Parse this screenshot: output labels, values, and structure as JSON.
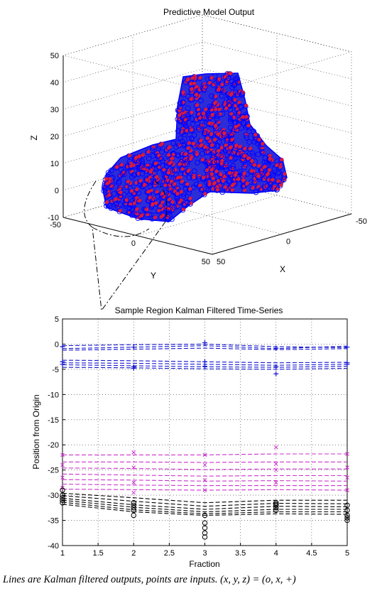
{
  "caption": "Lines are Kalman filtered outputs, points are inputs. (x, y, z) = (o, x, +)",
  "chart_data": [
    {
      "type": "scatter",
      "title": "Predictive Model Output",
      "xlabel": "X",
      "ylabel": "Y",
      "zlabel": "Z",
      "x_ticks": [
        "-50",
        "0",
        "50"
      ],
      "y_ticks": [
        "-50",
        "0",
        "50"
      ],
      "z_ticks": [
        "-10",
        "0",
        "10",
        "20",
        "30",
        "40",
        "50"
      ],
      "xlim": [
        -50,
        50
      ],
      "ylim": [
        -50,
        50
      ],
      "zlim": [
        -10,
        50
      ],
      "grid": true,
      "series": [],
      "colors": {
        "outputs": "#0000ff",
        "inputs": "#ff0000"
      }
    },
    {
      "type": "line",
      "title": "Sample Region Kalman Filtered Time-Series",
      "xlabel": "Fraction",
      "ylabel": "Position from Origin",
      "x": [
        1,
        2,
        3,
        4,
        5
      ],
      "x_ticks": [
        "1",
        "1.5",
        "2",
        "2.5",
        "3",
        "3.5",
        "4",
        "4.5",
        "5"
      ],
      "y_ticks": [
        "5",
        "0",
        "-5",
        "-10",
        "-15",
        "-20",
        "-25",
        "-30",
        "-35",
        "-40"
      ],
      "xlim": [
        1,
        5
      ],
      "ylim": [
        -40,
        5
      ],
      "grid": true,
      "groups": [
        {
          "marker": "+",
          "color": "#1515d0",
          "lines": [
            [
              -0.3,
              -0.1,
              0.0,
              -0.5,
              -0.7
            ],
            [
              -0.9,
              -0.6,
              -0.3,
              -0.9,
              -0.4
            ],
            [
              -1.2,
              -1.0,
              -0.8,
              -1.1,
              -0.9
            ],
            [
              -3.2,
              -3.3,
              -3.5,
              -3.7,
              -3.6
            ],
            [
              -3.7,
              -3.8,
              -4.0,
              -4.2,
              -4.0
            ],
            [
              -4.1,
              -4.3,
              -4.5,
              -4.6,
              -4.4
            ],
            [
              -4.6,
              -4.7,
              -4.9,
              -5.0,
              -4.8
            ]
          ],
          "points": [
            [
              -0.5,
              -0.6,
              0.3,
              -0.8,
              -0.6
            ],
            [
              -3.5,
              -4.5,
              -3.5,
              -4.5,
              -4.0
            ],
            [
              -4.0,
              -4.8,
              -4.4,
              -5.9,
              -3.7
            ]
          ]
        },
        {
          "marker": "x",
          "color": "#cc33cc",
          "lines": [
            [
              -22.0,
              -22.0,
              -22.0,
              -21.8,
              -21.8
            ],
            [
              -23.4,
              -23.4,
              -23.5,
              -23.4,
              -23.4
            ],
            [
              -24.6,
              -24.7,
              -24.9,
              -24.8,
              -24.8
            ],
            [
              -25.8,
              -26.0,
              -26.2,
              -26.1,
              -26.1
            ],
            [
              -26.9,
              -27.0,
              -27.2,
              -27.1,
              -27.2
            ],
            [
              -27.8,
              -28.0,
              -28.1,
              -28.1,
              -28.1
            ],
            [
              -28.8,
              -28.9,
              -29.0,
              -28.9,
              -29.0
            ]
          ],
          "points": [
            [
              -22.0,
              -21.5,
              -22.0,
              -20.5,
              -21.8
            ],
            [
              -24.0,
              -24.5,
              -24.0,
              -23.8,
              -24.5
            ],
            [
              -26.5,
              -27.5,
              -27.0,
              -25.0,
              -26.5
            ],
            [
              -28.5,
              -29.5,
              -29.0,
              -27.5,
              -29.0
            ]
          ]
        },
        {
          "marker": "o",
          "color": "#000000",
          "lines": [
            [
              -29.6,
              -30.5,
              -31.5,
              -31.0,
              -31.0
            ],
            [
              -30.1,
              -31.2,
              -32.2,
              -31.6,
              -31.7
            ],
            [
              -30.6,
              -31.9,
              -32.8,
              -32.2,
              -32.3
            ],
            [
              -31.0,
              -32.4,
              -33.3,
              -32.8,
              -32.8
            ],
            [
              -31.4,
              -32.9,
              -33.7,
              -33.3,
              -33.3
            ],
            [
              -31.8,
              -33.3,
              -34.0,
              -33.7,
              -33.8
            ]
          ],
          "points": [
            [
              -29.0,
              -31.5,
              -34.0,
              -31.5,
              -32.0
            ],
            [
              -30.0,
              -32.0,
              -35.5,
              -32.5,
              -33.0
            ],
            [
              -31.0,
              -33.0,
              -36.5,
              -33.0,
              -34.0
            ],
            [
              -31.5,
              -34.0,
              -37.5,
              -32.0,
              -34.5
            ],
            [
              -30.5,
              -32.5,
              -38.3,
              -31.8,
              -35.0
            ]
          ]
        }
      ]
    }
  ]
}
